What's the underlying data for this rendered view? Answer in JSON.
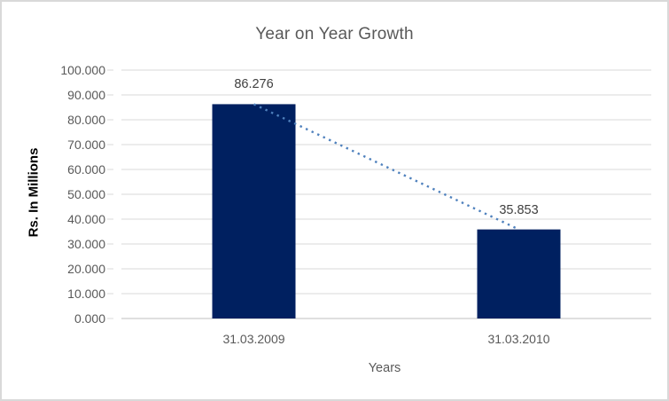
{
  "chart_data": {
    "type": "bar",
    "title": "Year on Year Growth",
    "xlabel": "Years",
    "ylabel": "Rs. In Millions",
    "categories": [
      "31.03.2009",
      "31.03.2010"
    ],
    "values": [
      86.276,
      35.853
    ],
    "data_labels": [
      "86.276",
      "35.853"
    ],
    "ylim": [
      0,
      100
    ],
    "ytick_step": 10,
    "ytick_labels_top_down": [
      "100.000",
      "90.000",
      "80.000",
      "70.000",
      "60.000",
      "50.000",
      "40.000",
      "30.000",
      "20.000",
      "10.000",
      "0.000"
    ],
    "grid": true,
    "legend": "none",
    "trendline": {
      "type": "linear",
      "style": "dotted",
      "from_point": [
        86.276
      ],
      "to_point": [
        35.853
      ]
    },
    "colors": {
      "bar": "#002060",
      "trendline": "#4f81bd",
      "gridline": "#d9d9d9",
      "axis_line": "#bfbfbf",
      "tick_mark": "#d9d9d9",
      "title_text": "#595959",
      "tick_text": "#595959",
      "data_label_text": "#404040",
      "x_axis_title_text": "#595959",
      "y_axis_title_text": "#000000",
      "border": "#d9d9d9",
      "background": "#ffffff"
    }
  }
}
